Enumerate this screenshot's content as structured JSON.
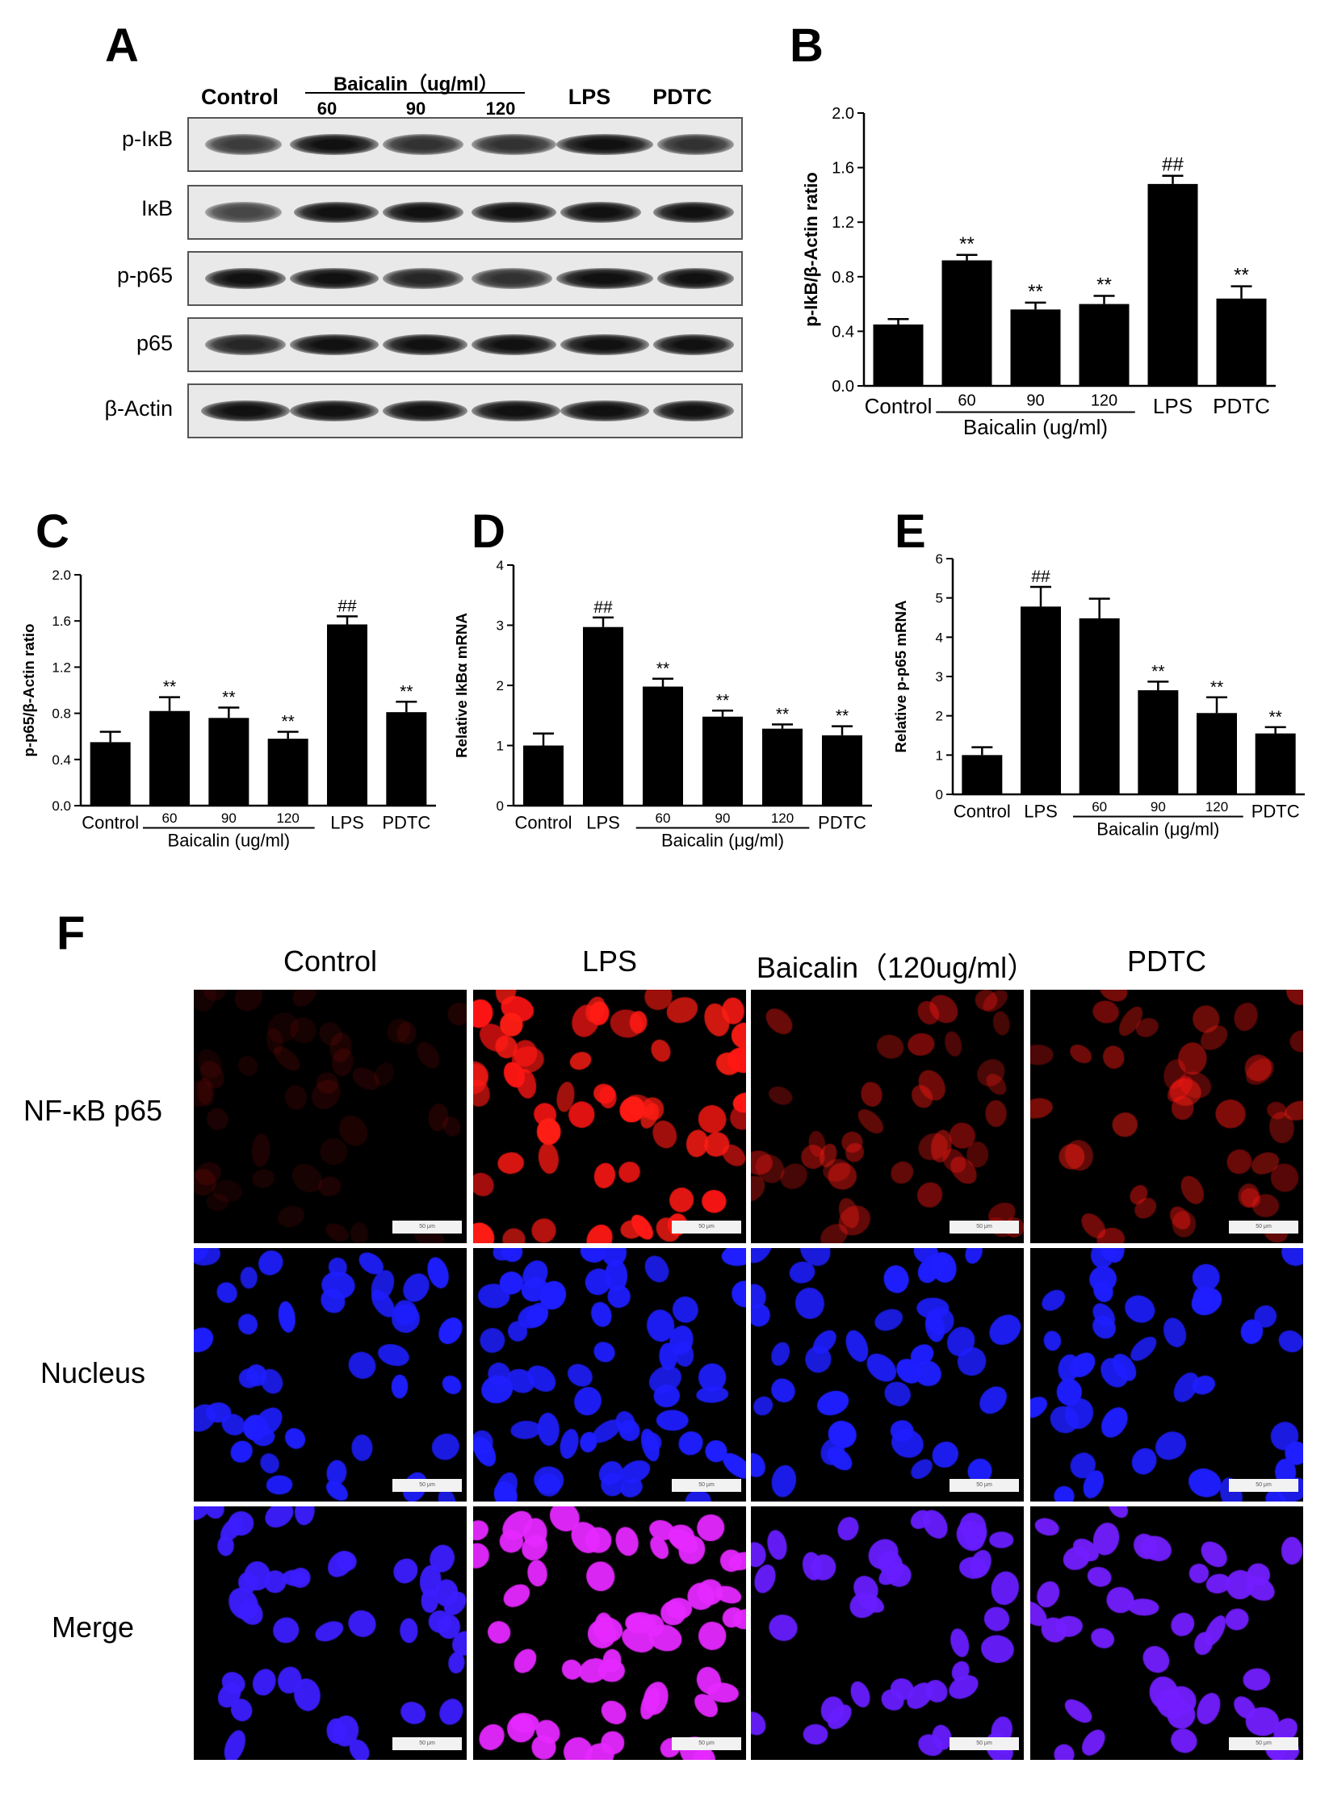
{
  "panels": {
    "A": {
      "letter": "A",
      "lanes": {
        "control": "Control",
        "baicalin": "Baicalin（ug/ml）",
        "d60": "60",
        "d90": "90",
        "d120": "120",
        "lps": "LPS",
        "pdtc": "PDTC"
      },
      "rows": [
        "p-IκB",
        "IκB",
        "p-p65",
        "p65",
        "β-Actin"
      ]
    },
    "B": {
      "letter": "B"
    },
    "C": {
      "letter": "C"
    },
    "D": {
      "letter": "D"
    },
    "E": {
      "letter": "E"
    },
    "F": {
      "letter": "F",
      "columns": [
        "Control",
        "LPS",
        "Baicalin（120ug/ml）",
        "PDTC"
      ],
      "rows": [
        "NF-κB p65",
        "Nucleus",
        "Merge"
      ],
      "scale_bar_text": "50 μm"
    }
  },
  "chart_data": [
    {
      "panel": "B",
      "type": "bar",
      "categories": [
        "Control",
        "60",
        "90",
        "120",
        "LPS",
        "PDTC"
      ],
      "values": [
        0.45,
        0.92,
        0.56,
        0.6,
        1.48,
        0.64
      ],
      "errors": [
        0.04,
        0.04,
        0.05,
        0.06,
        0.06,
        0.09
      ],
      "markers": [
        "",
        "**",
        "**",
        "**",
        "##",
        "**"
      ],
      "ylabel": "p-IkB/β-Actin ratio",
      "yticks": [
        "0.0",
        "0.4",
        "0.8",
        "1.2",
        "1.6",
        "2.0"
      ],
      "ylim": [
        0,
        2.0
      ],
      "group_label": "Baicalin (ug/ml)",
      "group_span": [
        "60",
        "120"
      ]
    },
    {
      "panel": "C",
      "type": "bar",
      "categories": [
        "Control",
        "60",
        "90",
        "120",
        "LPS",
        "PDTC"
      ],
      "values": [
        0.55,
        0.82,
        0.76,
        0.58,
        1.57,
        0.81
      ],
      "errors": [
        0.09,
        0.12,
        0.09,
        0.06,
        0.07,
        0.09
      ],
      "markers": [
        "",
        "**",
        "**",
        "**",
        "##",
        "**"
      ],
      "ylabel": "p-p65/β-Actin ratio",
      "yticks": [
        "0.0",
        "0.4",
        "0.8",
        "1.2",
        "1.6",
        "2.0"
      ],
      "ylim": [
        0,
        2.0
      ],
      "group_label": "Baicalin (ug/ml)",
      "group_span": [
        "60",
        "120"
      ]
    },
    {
      "panel": "D",
      "type": "bar",
      "categories": [
        "Control",
        "LPS",
        "60",
        "90",
        "120",
        "PDTC"
      ],
      "values": [
        1.0,
        2.97,
        1.98,
        1.48,
        1.28,
        1.17
      ],
      "errors": [
        0.2,
        0.16,
        0.13,
        0.1,
        0.07,
        0.15
      ],
      "markers": [
        "",
        "##",
        "**",
        "**",
        "**",
        "**"
      ],
      "ylabel": "Relative IkBα mRNA",
      "yticks": [
        "0",
        "1",
        "2",
        "3",
        "4"
      ],
      "ylim": [
        0,
        4
      ],
      "group_label": "Baicalin (μg/ml)",
      "group_span": [
        "60",
        "120"
      ]
    },
    {
      "panel": "E",
      "type": "bar",
      "categories": [
        "Control",
        "LPS",
        "60",
        "90",
        "120",
        "PDTC"
      ],
      "values": [
        1.0,
        4.78,
        4.48,
        2.65,
        2.07,
        1.55
      ],
      "errors": [
        0.2,
        0.5,
        0.5,
        0.22,
        0.4,
        0.16
      ],
      "markers": [
        "",
        "##",
        "",
        "**",
        "**",
        "**"
      ],
      "ylabel": "Relative p-p65 mRNA",
      "yticks": [
        "0",
        "1",
        "2",
        "3",
        "4",
        "5",
        "6"
      ],
      "ylim": [
        0,
        6
      ],
      "group_label": "Baicalin (μg/ml)",
      "group_span": [
        "60",
        "120"
      ]
    }
  ],
  "colors": {
    "bar": "#000000",
    "blot_bg": "#e9e9e9",
    "stain_red": "#ff1a1a",
    "stain_blue": "#1a1aff",
    "stain_merge": "#ff33cc"
  }
}
